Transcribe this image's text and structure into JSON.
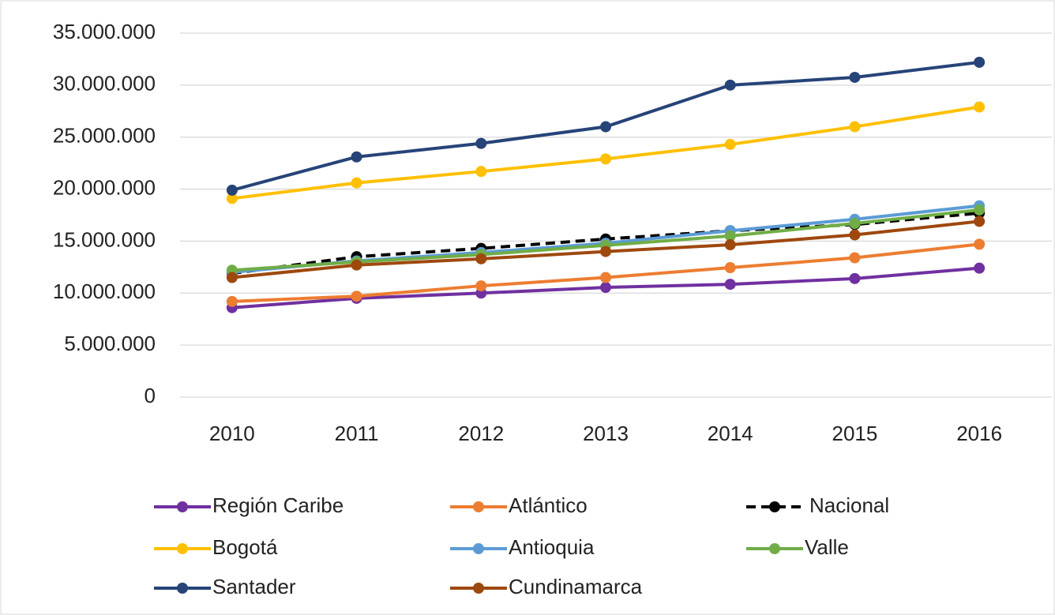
{
  "chart_data": {
    "type": "line",
    "categories": [
      "2010",
      "2011",
      "2012",
      "2013",
      "2014",
      "2015",
      "2016"
    ],
    "ylim": [
      0,
      35000000
    ],
    "yticks": [
      0,
      {
        "value": 5000000,
        "label": "5.000.000"
      },
      {
        "value": 10000000,
        "label": "10.000.000"
      },
      {
        "value": 15000000,
        "label": "15.000.000"
      },
      {
        "value": 20000000,
        "label": "20.000.000"
      },
      {
        "value": 25000000,
        "label": "25.000.000"
      },
      {
        "value": 30000000,
        "label": "30.000.000"
      },
      {
        "value": 35000000,
        "label": "35.000.000"
      }
    ],
    "grid": true,
    "legend": "bottom",
    "series": [
      {
        "name": "Región Caribe",
        "color": "#7030a0",
        "values": [
          8600000,
          9500000,
          10000000,
          10550000,
          10850000,
          11400000,
          12400000
        ]
      },
      {
        "name": "Atlántico",
        "color": "#ed7d31",
        "values": [
          9200000,
          9700000,
          10700000,
          11500000,
          12450000,
          13400000,
          14700000
        ]
      },
      {
        "name": "Nacional",
        "color": "#000000",
        "dashed": true,
        "values": [
          11900000,
          13500000,
          14300000,
          15200000,
          16000000,
          16600000,
          17700000
        ]
      },
      {
        "name": "Bogotá",
        "color": "#ffc000",
        "values": [
          19100000,
          20600000,
          21700000,
          22900000,
          24300000,
          26000000,
          27900000
        ]
      },
      {
        "name": "Antioquia",
        "color": "#5b9bd5",
        "values": [
          12000000,
          13100000,
          13900000,
          14800000,
          16000000,
          17100000,
          18400000
        ]
      },
      {
        "name": "Valle",
        "color": "#70ad47",
        "values": [
          12200000,
          13000000,
          13700000,
          14600000,
          15500000,
          16700000,
          18000000
        ]
      },
      {
        "name": "Santader",
        "color": "#264478",
        "values": [
          19900000,
          23100000,
          24400000,
          26000000,
          30000000,
          30750000,
          32200000
        ]
      },
      {
        "name": "Cundinamarca",
        "color": "#9e480e",
        "values": [
          11500000,
          12700000,
          13300000,
          14000000,
          14650000,
          15600000,
          16900000
        ]
      }
    ]
  }
}
